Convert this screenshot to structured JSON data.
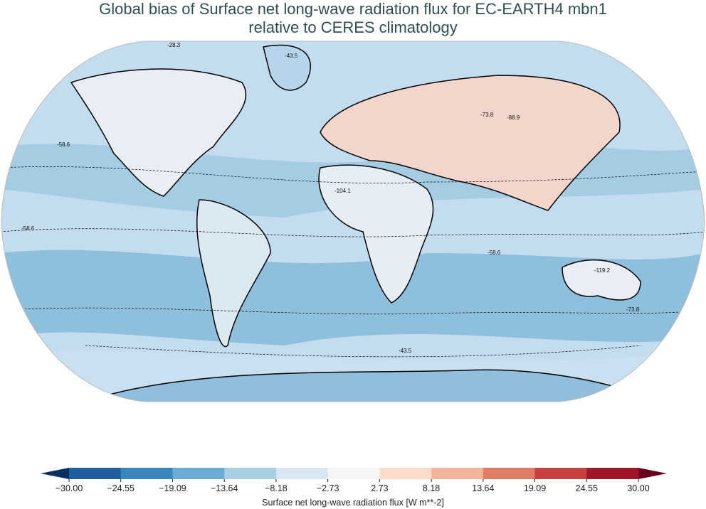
{
  "title": {
    "line1": "Global bias of Surface net long-wave radiation flux for EC-EARTH4 mbn1",
    "line2": "relative to CERES climatology"
  },
  "map": {
    "projection": "Robinson",
    "contour_labels": [
      "-28.3",
      "-43.5",
      "-58.6",
      "-73.8",
      "-88.9",
      "-104.1",
      "-119.2"
    ]
  },
  "colorbar": {
    "label": "Surface net long-wave radiation flux [W m**-2]",
    "ticks": [
      "−30.00",
      "−24.55",
      "−19.09",
      "−13.64",
      "−8.18",
      "−2.73",
      "2.73",
      "8.18",
      "13.64",
      "19.09",
      "24.55",
      "30.00"
    ],
    "colors": [
      "#1f5fa0",
      "#3a87c0",
      "#6aaed6",
      "#a8d0e4",
      "#d6e7f1",
      "#f5f5f5",
      "#fcdcc8",
      "#f4b49a",
      "#e07b65",
      "#c9413f",
      "#a01527"
    ],
    "extend_low": "#053061",
    "extend_high": "#67001f"
  }
}
